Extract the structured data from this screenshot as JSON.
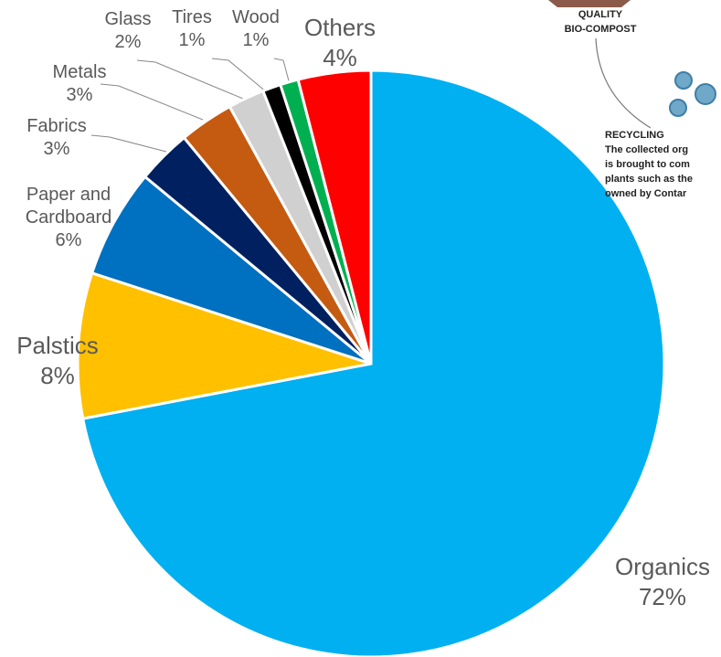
{
  "chart_data": {
    "type": "pie",
    "categories": [
      "Organics",
      "Palstics",
      "Paper and Cardboard",
      "Fabrics",
      "Metals",
      "Glass",
      "Tires",
      "Wood",
      "Others"
    ],
    "values": [
      72,
      8,
      6,
      3,
      3,
      2,
      1,
      1,
      4
    ],
    "value_labels": [
      "72%",
      "8%",
      "6%",
      "3%",
      "3%",
      "2%",
      "1%",
      "1%",
      "4%"
    ],
    "colors": [
      "#00b0f0",
      "#ffc000",
      "#0070c0",
      "#002060",
      "#c55a11",
      "#d0d0d0",
      "#000000",
      "#00b050",
      "#ff0000"
    ]
  },
  "infographic": {
    "compost": [
      "QUALITY",
      "BIO-COMPOST"
    ],
    "recycling_title": "RECYCLING",
    "recycling_text": [
      "The collected org",
      "is brought to com",
      "plants such as the",
      "owned by Contar"
    ]
  }
}
